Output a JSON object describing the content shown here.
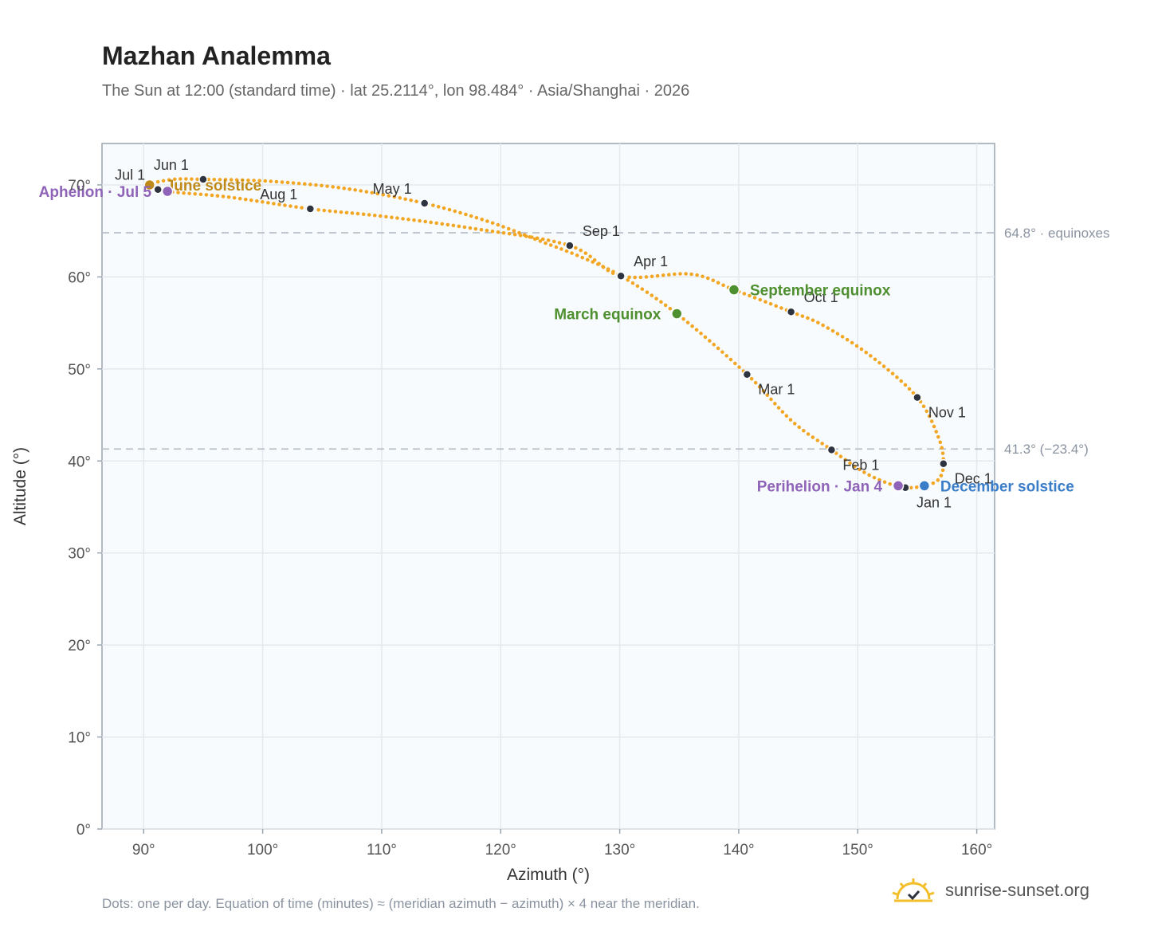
{
  "title": "Mazhan Analemma",
  "subtitle": "The Sun at 12:00 (standard time) · lat 25.2114°, lon 98.484° · Asia/Shanghai · 2026",
  "footnote": "Dots: one per day. Equation of time (minutes) ≈ (meridian azimuth − azimuth) × 4 near the meridian.",
  "brand": {
    "text": "sunrise-sunset.org",
    "icon": "sun-logo-icon"
  },
  "colors": {
    "curve": "#f2a623",
    "month_dot": "#2d3440",
    "equinox": "#4e8f2f",
    "solstice_june": "#c08a1a",
    "solstice_dec": "#3a7dc8",
    "apsis": "#8e63b8",
    "refline": "#b8c0c8",
    "plot_bg": "#f8fbfd",
    "grid": "#e4e9ee"
  },
  "chart_data": {
    "type": "scatter",
    "title": "Mazhan Analemma",
    "xlabel": "Azimuth (°)",
    "ylabel": "Altitude (°)",
    "xlim": [
      86.5,
      161.5
    ],
    "ylim": [
      0,
      74.5
    ],
    "x_ticks": [
      90,
      100,
      110,
      120,
      130,
      140,
      150,
      160
    ],
    "x_tick_labels": [
      "90°",
      "100°",
      "110°",
      "120°",
      "130°",
      "140°",
      "150°",
      "160°"
    ],
    "y_ticks": [
      0,
      10,
      20,
      30,
      40,
      50,
      60,
      70
    ],
    "y_tick_labels": [
      "0°",
      "10°",
      "20°",
      "30°",
      "40°",
      "50°",
      "60°",
      "70°"
    ],
    "grid": true,
    "series": [
      {
        "points": [
          [
            154.0,
            37.1
          ],
          [
            155.6,
            37.3
          ],
          [
            156.8,
            38.0
          ],
          [
            157.2,
            39.7
          ],
          [
            156.8,
            42.5
          ],
          [
            155.0,
            46.9
          ],
          [
            151.0,
            51.5
          ],
          [
            147.0,
            54.8
          ],
          [
            144.4,
            56.2
          ],
          [
            139.6,
            58.6
          ],
          [
            136.0,
            60.3
          ],
          [
            130.1,
            60.1
          ],
          [
            125.8,
            63.4
          ],
          [
            117.5,
            65.3
          ],
          [
            110.0,
            66.6
          ],
          [
            104.0,
            67.4
          ],
          [
            97.0,
            68.7
          ],
          [
            92.0,
            69.3
          ],
          [
            90.5,
            70.0
          ],
          [
            92.5,
            70.6
          ],
          [
            95.0,
            70.6
          ],
          [
            100.5,
            70.4
          ],
          [
            107.0,
            69.6
          ],
          [
            113.6,
            68.0
          ],
          [
            119.0,
            66.0
          ],
          [
            123.5,
            63.8
          ],
          [
            126.5,
            62.3
          ],
          [
            130.1,
            60.1
          ],
          [
            134.8,
            56.0
          ],
          [
            140.7,
            49.4
          ],
          [
            144.5,
            44.3
          ],
          [
            147.8,
            41.2
          ],
          [
            150.5,
            38.8
          ],
          [
            152.5,
            37.6
          ],
          [
            154.0,
            37.1
          ]
        ]
      }
    ],
    "month_markers": [
      {
        "label": "Jan 1",
        "x": 154.0,
        "y": 37.1,
        "label_pos": "below-right"
      },
      {
        "label": "Feb 1",
        "x": 147.8,
        "y": 41.2,
        "label_pos": "below-right"
      },
      {
        "label": "Mar 1",
        "x": 140.7,
        "y": 49.4,
        "label_pos": "below-right"
      },
      {
        "label": "Apr 1",
        "x": 130.1,
        "y": 60.1,
        "label_pos": "above-right"
      },
      {
        "label": "May 1",
        "x": 113.6,
        "y": 68.0,
        "label_pos": "above-left"
      },
      {
        "label": "Jun 1",
        "x": 95.0,
        "y": 70.6,
        "label_pos": "above-left"
      },
      {
        "label": "Jul 1",
        "x": 91.2,
        "y": 69.5,
        "label_pos": "above-left"
      },
      {
        "label": "Aug 1",
        "x": 104.0,
        "y": 67.4,
        "label_pos": "above-left"
      },
      {
        "label": "Sep 1",
        "x": 125.8,
        "y": 63.4,
        "label_pos": "above-right"
      },
      {
        "label": "Oct 1",
        "x": 144.4,
        "y": 56.2,
        "label_pos": "right"
      },
      {
        "label": "Nov 1",
        "x": 155.0,
        "y": 46.9,
        "label_pos": "below-right"
      },
      {
        "label": "Dec 1",
        "x": 157.2,
        "y": 39.7,
        "label_pos": "below-right"
      }
    ],
    "events": [
      {
        "label": "March equinox",
        "x": 134.8,
        "y": 56.0,
        "color": "#4e8f2f",
        "label_side": "left"
      },
      {
        "label": "September equinox",
        "x": 139.6,
        "y": 58.6,
        "color": "#4e8f2f",
        "label_side": "right"
      },
      {
        "label": "June solstice",
        "x": 90.5,
        "y": 70.0,
        "color": "#c08a1a",
        "label_side": "right"
      },
      {
        "label": "December solstice",
        "x": 155.6,
        "y": 37.3,
        "color": "#3a7dc8",
        "label_side": "right"
      },
      {
        "label": "Aphelion · Jul 5",
        "x": 92.0,
        "y": 69.3,
        "color": "#8e63b8",
        "label_side": "left"
      },
      {
        "label": "Perihelion · Jan 4",
        "x": 153.4,
        "y": 37.3,
        "color": "#8e63b8",
        "label_side": "left"
      }
    ],
    "reference_lines": [
      {
        "y": 64.8,
        "label": "64.8° · equinoxes"
      },
      {
        "y": 41.3,
        "label": "41.3° (−23.4°)"
      }
    ]
  }
}
